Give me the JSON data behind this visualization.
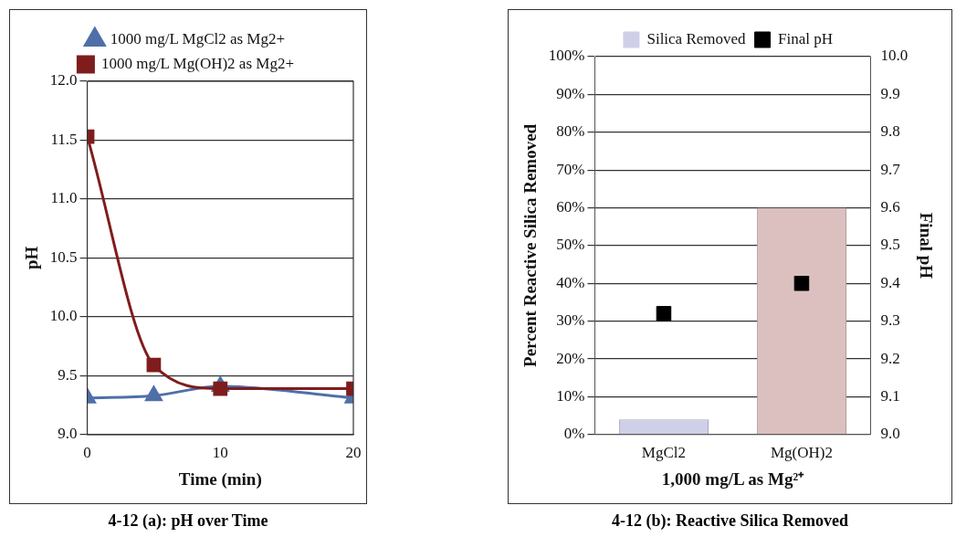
{
  "chart_data": [
    {
      "type": "line",
      "title": "4-12 (a): pH over Time",
      "xlabel": "Time (min)",
      "ylabel": "pH",
      "x": [
        0,
        5,
        10,
        20
      ],
      "series": [
        {
          "name": "1000 mg/L MgCl2 as Mg2+",
          "color": "#4f6fa8",
          "marker": "triangle",
          "values": [
            9.31,
            9.33,
            9.41,
            9.31
          ]
        },
        {
          "name": "1000 mg/L Mg(OH)2 as Mg2+",
          "color": "#7f1d1d",
          "marker": "square",
          "values": [
            11.53,
            9.59,
            9.39,
            9.39
          ]
        }
      ],
      "xlim": [
        0,
        20
      ],
      "xticks": [
        0,
        10,
        20
      ],
      "ylim": [
        9,
        12
      ],
      "yticks": [
        {
          "value": 9,
          "label": "9.0"
        },
        {
          "value": 9.5,
          "label": "9.5"
        },
        {
          "value": 10,
          "label": "10.0"
        },
        {
          "value": 10.5,
          "label": "10.5"
        },
        {
          "value": 11,
          "label": "11.0"
        },
        {
          "value": 11.5,
          "label": "11.5"
        },
        {
          "value": 12,
          "label": "12.0"
        }
      ],
      "grid": "y",
      "legend": "top",
      "line_style": "solid"
    },
    {
      "type": "bar",
      "title": "4-12 (b): Reactive Silica Removed",
      "xlabel": "1,000 mg/L as Mg²⁺",
      "ylabel": "Percent Reactive Silica Removed",
      "y2label": "Final pH",
      "categories": [
        "MgCl2",
        "Mg(OH)2"
      ],
      "series": [
        {
          "name": "Silica Removed",
          "colors": [
            "#cfcfe8",
            "#dcc0c0"
          ],
          "values": [
            4,
            60
          ]
        },
        {
          "name": "Final pH",
          "type": "scatter",
          "axis": "y2",
          "marker": "square",
          "color": "#000000",
          "x": [
            "MgCl2",
            "Mg(OH)2"
          ],
          "values": [
            9.32,
            9.4
          ]
        }
      ],
      "ylim": [
        0,
        100
      ],
      "yticks": [
        {
          "value": 0,
          "label": "0%"
        },
        {
          "value": 10,
          "label": "10%"
        },
        {
          "value": 20,
          "label": "20%"
        },
        {
          "value": 30,
          "label": "30%"
        },
        {
          "value": 40,
          "label": "40%"
        },
        {
          "value": 50,
          "label": "50%"
        },
        {
          "value": 60,
          "label": "60%"
        },
        {
          "value": 70,
          "label": "70%"
        },
        {
          "value": 80,
          "label": "80%"
        },
        {
          "value": 90,
          "label": "90%"
        },
        {
          "value": 100,
          "label": "100%"
        }
      ],
      "y2lim": [
        9,
        10
      ],
      "y2ticks": [
        {
          "value": 9,
          "label": "9.0"
        },
        {
          "value": 9.1,
          "label": "9.1"
        },
        {
          "value": 9.2,
          "label": "9.2"
        },
        {
          "value": 9.3,
          "label": "9.3"
        },
        {
          "value": 9.4,
          "label": "9.4"
        },
        {
          "value": 9.5,
          "label": "9.5"
        },
        {
          "value": 9.6,
          "label": "9.6"
        },
        {
          "value": 9.7,
          "label": "9.7"
        },
        {
          "value": 9.8,
          "label": "9.8"
        },
        {
          "value": 9.9,
          "label": "9.9"
        },
        {
          "value": 10,
          "label": "10.0"
        }
      ],
      "grid": "y",
      "legend": "top"
    }
  ]
}
